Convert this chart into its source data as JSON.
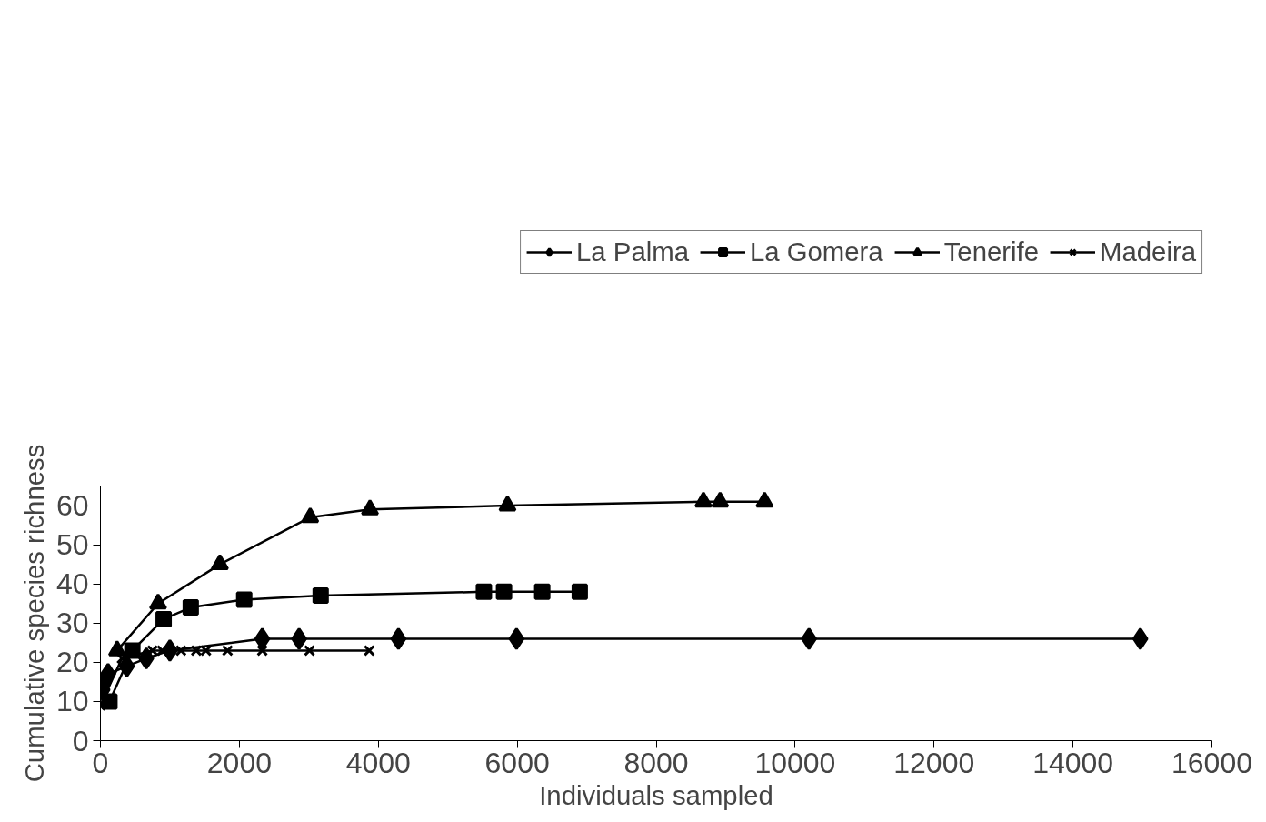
{
  "chart_data": {
    "type": "line",
    "xlabel": "Individuals sampled",
    "ylabel": "Cumulative species richness",
    "xlim": [
      0,
      16000
    ],
    "ylim": [
      0,
      65
    ],
    "xticks": [
      0,
      2000,
      4000,
      6000,
      8000,
      10000,
      12000,
      14000,
      16000
    ],
    "yticks": [
      0,
      10,
      20,
      30,
      40,
      50,
      60
    ],
    "grid": false,
    "legend": "top right",
    "series": [
      {
        "name": "La Palma",
        "color": "#000000",
        "marker": "diamond",
        "x": [
          30,
          50,
          110,
          380,
          660,
          1000,
          2330,
          2860,
          4290,
          5990,
          10200,
          14970
        ],
        "values": [
          13,
          15,
          17,
          19,
          21,
          23,
          26,
          26,
          26,
          26,
          26,
          26
        ]
      },
      {
        "name": "La Gomera",
        "color": "#000000",
        "marker": "square",
        "x": [
          130,
          460,
          910,
          1300,
          2070,
          3170,
          5520,
          5810,
          6360,
          6900
        ],
        "values": [
          10,
          23,
          31,
          34,
          36,
          37,
          38,
          38,
          38,
          38
        ]
      },
      {
        "name": "Tenerife",
        "color": "#000000",
        "marker": "triangle",
        "x": [
          240,
          830,
          1720,
          3020,
          3880,
          5860,
          8680,
          8920,
          9560
        ],
        "values": [
          23,
          35,
          45,
          57,
          59,
          60,
          61,
          61,
          61
        ]
      },
      {
        "name": "Madeira",
        "color": "#000000",
        "marker": "cross",
        "x": [
          0,
          310,
          750,
          890,
          1160,
          1380,
          1520,
          1830,
          2330,
          3010,
          3870
        ],
        "values": [
          9,
          21,
          23,
          23,
          23,
          23,
          23,
          23,
          23,
          23,
          23
        ]
      }
    ]
  }
}
